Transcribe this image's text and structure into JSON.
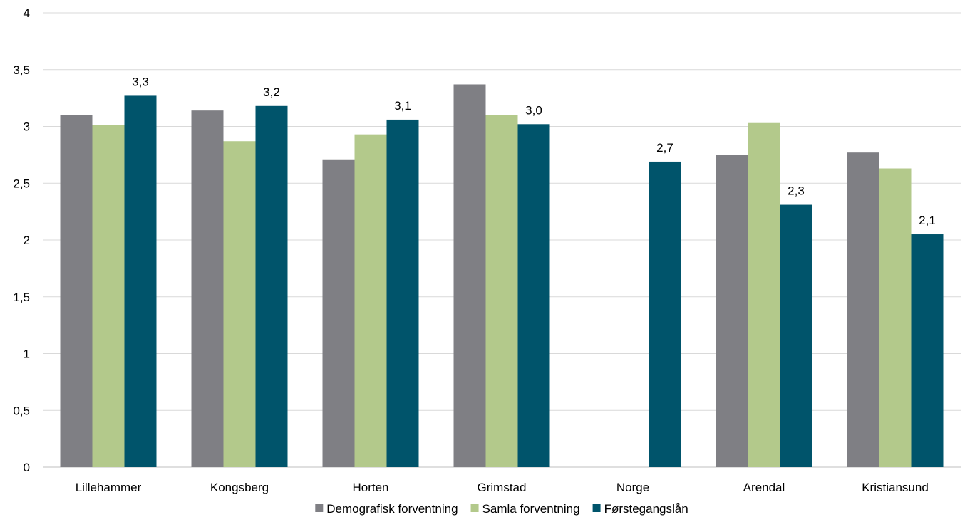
{
  "chart_data": {
    "type": "bar",
    "title": "",
    "xlabel": "",
    "ylabel": "",
    "ylim": [
      0,
      4
    ],
    "yticks": [
      0,
      0.5,
      1,
      1.5,
      2,
      2.5,
      3,
      3.5,
      4
    ],
    "ytick_labels": [
      "0",
      "0,5",
      "1",
      "1,5",
      "2",
      "2,5",
      "3",
      "3,5",
      "4"
    ],
    "grid": true,
    "legend_position": "bottom",
    "categories": [
      "Lillehammer",
      "Kongsberg",
      "Horten",
      "Grimstad",
      "Norge",
      "Arendal",
      "Kristiansund"
    ],
    "series": [
      {
        "name": "Demografisk forventning",
        "color": "#7f7f84",
        "values": [
          3.1,
          3.14,
          2.71,
          3.37,
          null,
          2.75,
          2.77
        ],
        "data_labels": [
          null,
          null,
          null,
          null,
          null,
          null,
          null
        ]
      },
      {
        "name": "Samla forventning",
        "color": "#b3c98b",
        "values": [
          3.01,
          2.87,
          2.93,
          3.1,
          null,
          3.03,
          2.63
        ],
        "data_labels": [
          null,
          null,
          null,
          null,
          null,
          null,
          null
        ]
      },
      {
        "name": "Førstegangslån",
        "color": "#00546b",
        "values": [
          3.27,
          3.18,
          3.06,
          3.02,
          2.69,
          2.31,
          2.05
        ],
        "data_labels": [
          "3,3",
          "3,2",
          "3,1",
          "3,0",
          "2,7",
          "2,3",
          "2,1"
        ]
      }
    ]
  }
}
